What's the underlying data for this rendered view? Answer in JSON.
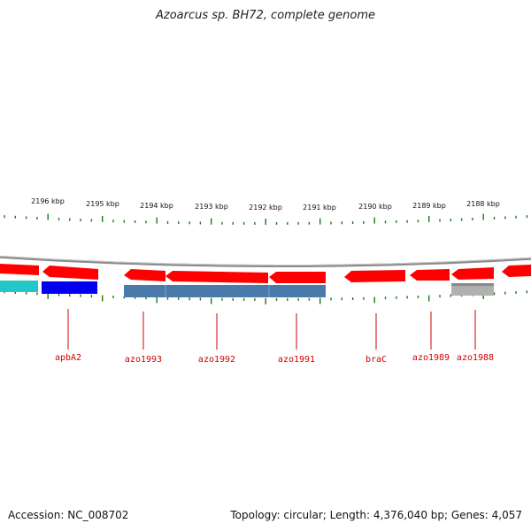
{
  "title": "Azoarcus sp. BH72, complete genome",
  "footer": {
    "accession": "Accession: NC_008702",
    "summary": "Topology: circular; Length: 4,376,040 bp; Genes: 4,057"
  },
  "scale_labels": [
    "2196 kbp",
    "2195 kbp",
    "2194 kbp",
    "2193 kbp",
    "2192 kbp",
    "2191 kbp",
    "2190 kbp",
    "2189 kbp",
    "2188 kbp"
  ],
  "gene_labels": [
    "apbA2",
    "azo1993",
    "azo1992",
    "azo1991",
    "braC",
    "azo1989",
    "azo1988"
  ],
  "colors": {
    "gene_red": "#ff0000",
    "gene_label": "#d40000",
    "tick_green": "#1a7a1a",
    "backbone": "#8a8a8a",
    "cyan": "#22c8c8",
    "blue": "#0000ee",
    "steelblue": "#4a7aaa",
    "gray_feature": "#b0b0b0"
  }
}
